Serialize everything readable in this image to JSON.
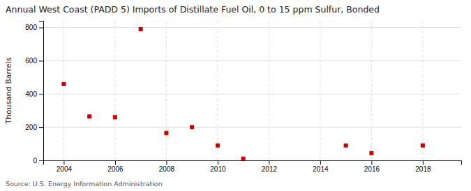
{
  "chart_data": {
    "type": "scatter",
    "title": "Annual West Coast (PADD 5) Imports of Distillate Fuel Oil, 0 to 15 ppm Sulfur, Bonded",
    "ylabel": "Thousand Barrels",
    "source": "Source: U.S. Energy Information Administration",
    "x": [
      2004,
      2005,
      2006,
      2007,
      2008,
      2009,
      2010,
      2011,
      2015,
      2016,
      2018
    ],
    "values": [
      460,
      265,
      260,
      790,
      165,
      200,
      90,
      10,
      90,
      45,
      90
    ],
    "color": "#cc0000",
    "marker": "square",
    "xlim": [
      2003.2,
      2019.5
    ],
    "ylim": [
      0,
      840
    ],
    "xticks": [
      2004,
      2006,
      2008,
      2010,
      2012,
      2014,
      2016,
      2018
    ],
    "yticks": [
      0,
      200,
      400,
      600,
      800
    ],
    "grid": true
  }
}
